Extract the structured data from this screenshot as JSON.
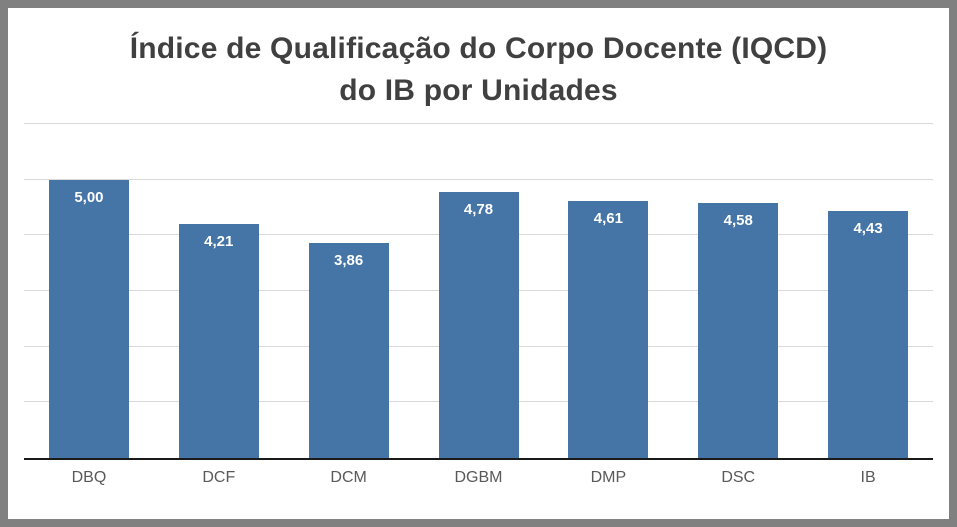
{
  "chart_data": {
    "type": "bar",
    "title": "Índice de Qualificação do Corpo Docente (IQCD) do IB por Unidades",
    "title_line1": "Índice de Qualificação do Corpo Docente (IQCD)",
    "title_line2": "do IB por Unidades",
    "categories": [
      "DBQ",
      "DCF",
      "DCM",
      "DGBM",
      "DMP",
      "DSC",
      "IB"
    ],
    "values": [
      5.0,
      4.21,
      3.86,
      4.78,
      4.61,
      4.58,
      4.43
    ],
    "value_labels": [
      "5,00",
      "4,21",
      "3,86",
      "4,78",
      "4,61",
      "4,58",
      "4,43"
    ],
    "xlabel": "",
    "ylabel": "",
    "ylim": [
      0,
      6
    ],
    "gridline_step": 1,
    "grid": true,
    "legend": "none",
    "value_labels_position": "inside-top",
    "colors": {
      "bar": "#4575a7",
      "title_text": "#404040",
      "category_text": "#595959",
      "value_label_text": "#ffffff",
      "gridline": "#d9d9d9",
      "axis_line": "#1a1a1a",
      "frame_border": "#808080",
      "background": "#ffffff"
    }
  }
}
